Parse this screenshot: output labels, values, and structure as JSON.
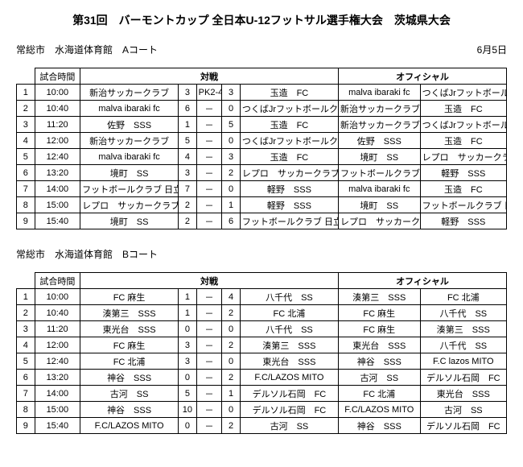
{
  "title": "第31回　バーモントカップ 全日本U-12フットサル選手権大会　茨城県大会",
  "date": "6月5日",
  "headers": {
    "time": "試合時間",
    "match": "対戦",
    "official": "オフィシャル"
  },
  "sections": [
    {
      "venue": "常総市　水海道体育館　Aコート",
      "showDate": true,
      "rows": [
        {
          "n": "1",
          "t": "10:00",
          "a": "新治サッカークラブ",
          "sa": "3",
          "m": "PK2-4",
          "sb": "3",
          "b": "玉造　FC",
          "o1": "malva ibaraki fc",
          "o2": "つくばJrフットボールクラブ"
        },
        {
          "n": "2",
          "t": "10:40",
          "a": "malva ibaraki fc",
          "sa": "6",
          "m": "－",
          "sb": "0",
          "b": "つくばJrフットボールクラブ",
          "o1": "新治サッカークラブ",
          "o2": "玉造　FC"
        },
        {
          "n": "3",
          "t": "11:20",
          "a": "佐野　SSS",
          "sa": "1",
          "m": "－",
          "sb": "5",
          "b": "玉造　FC",
          "o1": "新治サッカークラブ",
          "o2": "つくばJrフットボールクラブ"
        },
        {
          "n": "4",
          "t": "12:00",
          "a": "新治サッカークラブ",
          "sa": "5",
          "m": "－",
          "sb": "0",
          "b": "つくばJrフットボールクラブ",
          "o1": "佐野　SSS",
          "o2": "玉造　FC"
        },
        {
          "n": "5",
          "t": "12:40",
          "a": "malva ibaraki fc",
          "sa": "4",
          "m": "－",
          "sb": "3",
          "b": "玉造　FC",
          "o1": "境町　SS",
          "o2": "レプロ　サッカークラブ"
        },
        {
          "n": "6",
          "t": "13:20",
          "a": "境町　SS",
          "sa": "3",
          "m": "－",
          "sb": "2",
          "b": "レプロ　サッカークラブ",
          "o1": "フットボールクラブ 日立",
          "o2": "軽野　SSS"
        },
        {
          "n": "7",
          "t": "14:00",
          "a": "フットボールクラブ 日立",
          "sa": "7",
          "m": "－",
          "sb": "0",
          "b": "軽野　SSS",
          "o1": "malva ibaraki fc",
          "o2": "玉造　FC"
        },
        {
          "n": "8",
          "t": "15:00",
          "a": "レプロ　サッカークラブ",
          "sa": "2",
          "m": "－",
          "sb": "1",
          "b": "軽野　SSS",
          "o1": "境町　SS",
          "o2": "フットボールクラブ 日立"
        },
        {
          "n": "9",
          "t": "15:40",
          "a": "境町　SS",
          "sa": "2",
          "m": "－",
          "sb": "6",
          "b": "フットボールクラブ 日立",
          "o1": "レプロ　サッカークラブ",
          "o2": "軽野　SSS"
        }
      ]
    },
    {
      "venue": "常総市　水海道体育館　Bコート",
      "showDate": false,
      "rows": [
        {
          "n": "1",
          "t": "10:00",
          "a": "FC 麻生",
          "sa": "1",
          "m": "－",
          "sb": "4",
          "b": "八千代　SS",
          "o1": "湊第三　SSS",
          "o2": "FC 北浦"
        },
        {
          "n": "2",
          "t": "10:40",
          "a": "湊第三　SSS",
          "sa": "1",
          "m": "－",
          "sb": "2",
          "b": "FC 北浦",
          "o1": "FC 麻生",
          "o2": "八千代　SS"
        },
        {
          "n": "3",
          "t": "11:20",
          "a": "東光台　SSS",
          "sa": "0",
          "m": "－",
          "sb": "0",
          "b": "八千代　SS",
          "o1": "FC 麻生",
          "o2": "湊第三　SSS"
        },
        {
          "n": "4",
          "t": "12:00",
          "a": "FC 麻生",
          "sa": "3",
          "m": "－",
          "sb": "2",
          "b": "湊第三　SSS",
          "o1": "東光台　SSS",
          "o2": "八千代　SS"
        },
        {
          "n": "5",
          "t": "12:40",
          "a": "FC 北浦",
          "sa": "3",
          "m": "－",
          "sb": "0",
          "b": "東光台　SSS",
          "o1": "神谷　SSS",
          "o2": "F.C lazos MITO"
        },
        {
          "n": "6",
          "t": "13:20",
          "a": "神谷　SSS",
          "sa": "0",
          "m": "－",
          "sb": "2",
          "b": "F.C/LAZOS MITO",
          "o1": "古河　SS",
          "o2": "デルソル石岡　FC"
        },
        {
          "n": "7",
          "t": "14:00",
          "a": "古河　SS",
          "sa": "5",
          "m": "－",
          "sb": "1",
          "b": "デルソル石岡　FC",
          "o1": "FC 北浦",
          "o2": "東光台　SSS"
        },
        {
          "n": "8",
          "t": "15:00",
          "a": "神谷　SSS",
          "sa": "10",
          "m": "－",
          "sb": "0",
          "b": "デルソル石岡　FC",
          "o1": "F.C/LAZOS MITO",
          "o2": "古河　SS"
        },
        {
          "n": "9",
          "t": "15:40",
          "a": "F.C/LAZOS MITO",
          "sa": "0",
          "m": "－",
          "sb": "2",
          "b": "古河　SS",
          "o1": "神谷　SSS",
          "o2": "デルソル石岡　FC"
        }
      ]
    }
  ]
}
